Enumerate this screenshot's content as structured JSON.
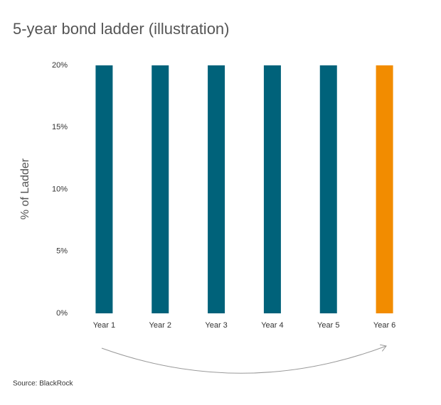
{
  "chart_data": {
    "type": "bar",
    "title": "5-year bond ladder (illustration)",
    "y_label": "% of Ladder",
    "source": "Source: BlackRock",
    "categories": [
      "Year 1",
      "Year 2",
      "Year 3",
      "Year 4",
      "Year 5",
      "Year 6"
    ],
    "values": [
      20,
      20,
      20,
      20,
      20,
      20
    ],
    "colors": [
      "#00627a",
      "#00627a",
      "#00627a",
      "#00627a",
      "#00627a",
      "#f28c00"
    ],
    "ylim": [
      0,
      20
    ],
    "yticks": [
      {
        "value": 0,
        "label": "0%"
      },
      {
        "value": 5,
        "label": "5%"
      },
      {
        "value": 10,
        "label": "10%"
      },
      {
        "value": 15,
        "label": "15%"
      },
      {
        "value": 20,
        "label": "20%"
      }
    ],
    "grid": false
  }
}
